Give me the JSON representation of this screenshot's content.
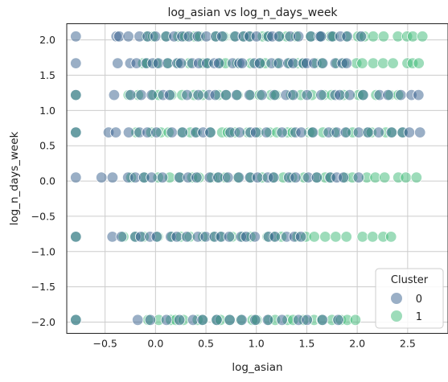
{
  "chart_data": {
    "type": "scatter",
    "title": "log_asian vs log_n_days_week",
    "xlabel": "log_asian",
    "ylabel": "log_n_days_week",
    "xlim": [
      -0.88,
      2.9
    ],
    "ylim": [
      -2.16,
      2.23
    ],
    "xticks": [
      -0.5,
      0.0,
      0.5,
      1.0,
      1.5,
      2.0,
      2.5
    ],
    "xtick_labels": [
      "−0.5",
      "0.0",
      "0.5",
      "1.0",
      "1.5",
      "2.0",
      "2.5"
    ],
    "yticks": [
      -2.0,
      -1.5,
      -1.0,
      -0.5,
      0.0,
      0.5,
      1.0,
      1.5,
      2.0
    ],
    "ytick_labels": [
      "−2.0",
      "−1.5",
      "−1.0",
      "−0.5",
      "0.0",
      "0.5",
      "1.0",
      "1.5",
      "2.0"
    ],
    "grid": true,
    "legend": {
      "title": "Cluster",
      "placement": "lower-right"
    },
    "series": [
      {
        "name": "0",
        "color": "#35608d",
        "rows": [
          {
            "y": 2.05,
            "x_min": -0.45,
            "x_max": 2.05,
            "n": 30
          },
          {
            "y": 1.67,
            "x_min": -0.4,
            "x_max": 1.95,
            "n": 30
          },
          {
            "y": 1.22,
            "x_min": -0.45,
            "x_max": 2.7,
            "n": 28
          },
          {
            "y": 0.69,
            "x_min": -0.55,
            "x_max": 2.7,
            "n": 30
          },
          {
            "y": 0.05,
            "x_min": -0.55,
            "x_max": 2.05,
            "n": 26
          },
          {
            "y": -0.79,
            "x_min": -0.45,
            "x_max": 1.5,
            "n": 22
          },
          {
            "y": -1.97,
            "x_min": -0.22,
            "x_max": 1.85,
            "n": 16
          }
        ],
        "isolated": [
          {
            "x": -0.79,
            "y": 2.05
          },
          {
            "x": -0.79,
            "y": 1.67
          },
          {
            "x": -0.79,
            "y": 1.22
          },
          {
            "x": -0.79,
            "y": 0.69
          },
          {
            "x": -0.79,
            "y": 0.05
          },
          {
            "x": -0.79,
            "y": -0.79
          },
          {
            "x": -0.79,
            "y": -1.97
          }
        ]
      },
      {
        "name": "1",
        "color": "#3cba75",
        "rows": [
          {
            "y": 2.05,
            "x_min": -0.15,
            "x_max": 2.7,
            "n": 30
          },
          {
            "y": 1.67,
            "x_min": -0.2,
            "x_max": 2.7,
            "n": 30
          },
          {
            "y": 1.22,
            "x_min": -0.3,
            "x_max": 2.45,
            "n": 26
          },
          {
            "y": 0.69,
            "x_min": -0.2,
            "x_max": 2.5,
            "n": 28
          },
          {
            "y": 0.05,
            "x_min": -0.25,
            "x_max": 2.65,
            "n": 28
          },
          {
            "y": -0.79,
            "x_min": -0.35,
            "x_max": 2.4,
            "n": 26
          },
          {
            "y": -1.97,
            "x_min": -0.1,
            "x_max": 2.05,
            "n": 24
          }
        ],
        "isolated": [
          {
            "x": -0.79,
            "y": 1.22
          },
          {
            "x": -0.79,
            "y": 0.69
          },
          {
            "x": -0.79,
            "y": -0.79
          },
          {
            "x": -0.79,
            "y": -1.97
          }
        ]
      }
    ]
  }
}
